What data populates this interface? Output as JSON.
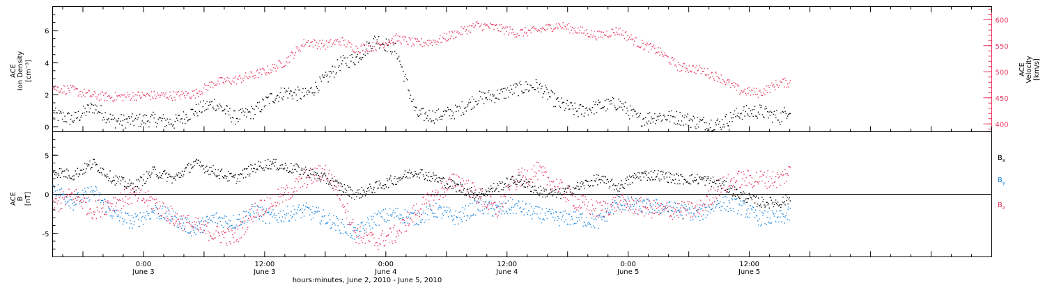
{
  "colors": {
    "black": "#000000",
    "pink": "#e8325f",
    "blue": "#1a86e0",
    "background": "#ffffff"
  },
  "chart_data": [
    {
      "type": "scatter",
      "panel": "top",
      "ylabel_left": [
        "ACE",
        "Ion Density",
        "[cm⁻³]"
      ],
      "ylabel_right": [
        "ACE",
        "Velocity",
        "[km/s]"
      ],
      "x_range": [
        -9,
        84
      ],
      "x_data_end": 64,
      "ylim_left": [
        -0.3,
        7.5
      ],
      "ylim_right": [
        385,
        625
      ],
      "yticks_left": [
        "0",
        "2",
        "4",
        "6"
      ],
      "yticks_right": [
        "400",
        "450",
        "500",
        "550",
        "600"
      ],
      "series": [
        {
          "color": "#000000",
          "axis": "left",
          "x": [
            -9,
            -7,
            -5,
            -3,
            -1,
            1,
            3,
            5,
            7,
            9,
            11,
            12.5,
            14,
            16,
            18,
            19.5,
            21,
            23,
            25,
            27,
            29,
            31,
            33,
            35,
            37,
            39,
            41,
            43,
            45,
            47,
            49,
            51,
            53,
            55,
            57,
            59,
            61,
            63,
            64
          ],
          "y": [
            0.8,
            0.5,
            1.3,
            0.4,
            0.4,
            0.5,
            0.3,
            1.0,
            1.5,
            0.6,
            1.0,
            1.8,
            2.2,
            2.0,
            3.0,
            4.0,
            4.3,
            5.5,
            4.8,
            0.8,
            0.7,
            1.0,
            1.8,
            2.0,
            2.4,
            2.6,
            1.5,
            1.0,
            1.3,
            1.5,
            0.5,
            0.7,
            0.6,
            0.3,
            0.2,
            0.9,
            1.0,
            0.6,
            1.2
          ]
        },
        {
          "color": "#e8325f",
          "axis": "right",
          "x": [
            -9,
            -7,
            -5,
            -3,
            -1,
            1,
            3,
            5,
            7,
            9,
            11,
            12.5,
            14,
            16,
            18,
            19.5,
            21,
            23,
            25,
            27,
            29,
            31,
            33,
            35,
            37,
            39,
            41,
            43,
            45,
            47,
            49,
            51,
            53,
            55,
            57,
            59,
            61,
            63,
            64
          ],
          "y": [
            470,
            465,
            455,
            452,
            455,
            455,
            455,
            458,
            480,
            485,
            495,
            505,
            520,
            558,
            552,
            560,
            545,
            550,
            565,
            555,
            560,
            575,
            590,
            585,
            575,
            580,
            590,
            580,
            570,
            580,
            555,
            540,
            510,
            505,
            490,
            465,
            460,
            480,
            480
          ]
        }
      ]
    },
    {
      "type": "scatter",
      "panel": "bottom",
      "ylabel_left": [
        "ACE",
        "B",
        "[nT]"
      ],
      "x_range": [
        -9,
        84
      ],
      "x_data_end": 64,
      "ylim": [
        -8,
        8
      ],
      "yticks": [
        "-5",
        "0",
        "5"
      ],
      "legend_position": "right",
      "series": [
        {
          "name": "Bx",
          "color": "#000000",
          "x": [
            -9,
            -7,
            -5,
            -3,
            -1,
            1,
            3,
            5,
            7,
            9,
            11,
            12.5,
            14,
            16,
            18,
            19.5,
            21,
            23,
            25,
            27,
            29,
            31,
            33,
            35,
            37,
            39,
            41,
            43,
            45,
            47,
            49,
            51,
            53,
            55,
            57,
            59,
            61,
            63,
            64
          ],
          "y": [
            3,
            2.5,
            4,
            2,
            1,
            3,
            2,
            4,
            3,
            2,
            3.5,
            4,
            3.5,
            3,
            2,
            1,
            0,
            1,
            2,
            3,
            2,
            1,
            0,
            1,
            2,
            0.5,
            0,
            1,
            2,
            1,
            2.5,
            2.5,
            2,
            2,
            1.5,
            0,
            -1,
            -1,
            -0.5
          ]
        },
        {
          "name": "By",
          "color": "#1a86e0",
          "x": [
            -9,
            -7,
            -5,
            -3,
            -1,
            1,
            3,
            5,
            7,
            9,
            11,
            12.5,
            14,
            16,
            18,
            19.5,
            21,
            23,
            25,
            27,
            29,
            31,
            33,
            35,
            37,
            39,
            41,
            43,
            45,
            47,
            49,
            51,
            53,
            55,
            57,
            59,
            61,
            63,
            64
          ],
          "y": [
            1,
            -1,
            0.5,
            -2.5,
            -3.5,
            -2,
            -3,
            -4.5,
            -3,
            -3.5,
            -2,
            -3,
            -2.5,
            -2,
            -3,
            -4,
            -5,
            -3,
            -2.5,
            -3,
            -2,
            -3,
            -1.5,
            -2,
            -1.5,
            -2.5,
            -3,
            -3,
            -3.5,
            -1,
            -1.5,
            -1.5,
            -2,
            -2.5,
            -1,
            -1.5,
            -3,
            -3,
            -2.5
          ]
        },
        {
          "name": "Bz",
          "color": "#e8325f",
          "x": [
            -9,
            -7,
            -5,
            -3,
            -1,
            1,
            3,
            5,
            7,
            9,
            11,
            12.5,
            14,
            16,
            18,
            19.5,
            21,
            23,
            25,
            27,
            29,
            31,
            33,
            35,
            37,
            39,
            41,
            43,
            45,
            47,
            49,
            51,
            53,
            55,
            57,
            59,
            61,
            63,
            64
          ],
          "y": [
            -1.5,
            0,
            -2,
            -1,
            0,
            -1,
            -3,
            -4,
            -5,
            -5.5,
            -2,
            -1,
            0,
            2,
            3,
            0,
            -5,
            -6,
            -5,
            -2,
            0,
            2,
            0,
            -2,
            2,
            3,
            1,
            -1,
            -2,
            -1,
            -1.5,
            -2,
            -2,
            -2,
            1,
            2,
            2,
            2,
            3
          ]
        }
      ]
    }
  ],
  "x_axis": {
    "ticks": [
      {
        "x": 0,
        "time": "0:00",
        "day": "June 3"
      },
      {
        "x": 12,
        "time": "12:00",
        "day": "June 3"
      },
      {
        "x": 24,
        "time": "0:00",
        "day": "June 4"
      },
      {
        "x": 36,
        "time": "12:00",
        "day": "June 4"
      },
      {
        "x": 48,
        "time": "0:00",
        "day": "June 5"
      },
      {
        "x": 60,
        "time": "12:00",
        "day": "June 5"
      }
    ],
    "label": "hours:minutes, June  2, 2010 - June  5, 2010"
  },
  "legend": {
    "bx": {
      "main": "B",
      "sub": "x"
    },
    "by": {
      "main": "B",
      "sub": "y"
    },
    "bz": {
      "main": "B",
      "sub": "z"
    }
  },
  "labels": {
    "top_left": [
      "ACE",
      "Ion Density",
      "[cm⁻³]"
    ],
    "top_right": [
      "ACE",
      "Velocity",
      "[km/s]"
    ],
    "bottom_left": [
      "ACE",
      "B",
      "[nT]"
    ]
  }
}
